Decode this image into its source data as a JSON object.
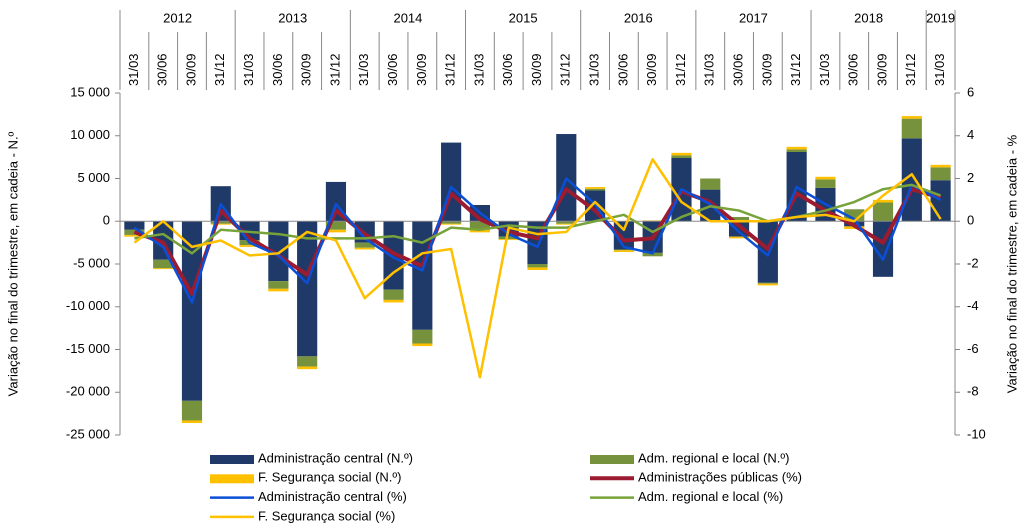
{
  "chart_data": {
    "type": "bar",
    "years": [
      "2012",
      "2013",
      "2014",
      "2015",
      "2016",
      "2017",
      "2018",
      "2019"
    ],
    "categories": [
      "31/03",
      "30/06",
      "30/09",
      "31/12",
      "31/03",
      "30/06",
      "30/09",
      "31/12",
      "31/03",
      "30/06",
      "30/09",
      "31/12",
      "31/03",
      "30/06",
      "30/09",
      "31/12",
      "31/03",
      "30/06",
      "30/09",
      "31/12",
      "31/03",
      "30/06",
      "30/09",
      "31/12",
      "31/03",
      "30/06",
      "30/09",
      "31/12",
      "31/03"
    ],
    "y_label": "Variação no final do trimestre, em cadeia - N.º",
    "y2_label": "Variação no final do trimestre, em cadeia - %",
    "ylim": [
      -25000,
      15000
    ],
    "yticks": [
      {
        "value": 15000,
        "label": "15 000"
      },
      {
        "value": 10000,
        "label": "10 000"
      },
      {
        "value": 5000,
        "label": "5 000"
      },
      0,
      {
        "value": -5000,
        "label": "-5 000"
      },
      {
        "value": -10000,
        "label": "-10 000"
      },
      {
        "value": -15000,
        "label": "-15 000"
      },
      {
        "value": -20000,
        "label": "-20 000"
      },
      {
        "value": -25000,
        "label": "-25 000"
      }
    ],
    "y2lim": [
      -10,
      6
    ],
    "y2ticks": [
      6,
      4,
      2,
      0,
      -2,
      -4,
      -6,
      -8,
      -10
    ],
    "series": [
      {
        "name": "Administração central (N.º)",
        "type": "bar",
        "color": "#1f3a68",
        "values": [
          -1000,
          -4500,
          -21000,
          4100,
          -2200,
          -7000,
          -15800,
          4600,
          -2500,
          -8000,
          -12700,
          9200,
          1900,
          -1800,
          -5000,
          10200,
          3600,
          -3300,
          -3700,
          7400,
          3700,
          -1800,
          -7200,
          8100,
          3900,
          -600,
          -6500,
          9700,
          4800
        ]
      },
      {
        "name": "Adm. regional e local (N.º)",
        "type": "bar",
        "color": "#76923c",
        "values": [
          -600,
          -1000,
          -2300,
          -300,
          -600,
          -900,
          -1200,
          -1000,
          -600,
          -1200,
          -1600,
          -300,
          -1000,
          -300,
          -400,
          -300,
          200,
          -100,
          -400,
          300,
          1300,
          500,
          -100,
          300,
          1000,
          1400,
          2200,
          2300,
          1500
        ]
      },
      {
        "name": "F. Segurança social (N.º)",
        "type": "bar",
        "color": "#ffc000",
        "values": [
          -200,
          -100,
          -300,
          -100,
          -200,
          -300,
          -300,
          -300,
          -200,
          -300,
          -300,
          -100,
          -300,
          -100,
          -300,
          -100,
          200,
          -200,
          100,
          300,
          0,
          -200,
          -200,
          300,
          300,
          -300,
          300,
          300,
          300
        ]
      },
      {
        "name": "Administrações públicas (%)",
        "type": "line",
        "axis": "y2",
        "color": "#9b1b30",
        "width": 4,
        "values": [
          -0.5,
          -1.0,
          -3.4,
          0.5,
          -0.8,
          -1.6,
          -2.5,
          0.5,
          -0.6,
          -1.5,
          -2.1,
          1.3,
          0.1,
          -0.5,
          -0.8,
          1.5,
          0.5,
          -0.9,
          -0.8,
          1.4,
          0.9,
          -0.2,
          -1.3,
          1.3,
          0.5,
          -0.2,
          -1.0,
          1.5,
          1.1
        ]
      },
      {
        "name": "Administração central (%)",
        "type": "line",
        "axis": "y2",
        "color": "#0a4fd6",
        "width": 2.5,
        "values": [
          -0.3,
          -1.2,
          -3.8,
          0.8,
          -1.0,
          -1.6,
          -2.9,
          0.8,
          -0.8,
          -1.7,
          -2.3,
          1.6,
          0.4,
          -0.6,
          -1.2,
          2.0,
          0.8,
          -1.2,
          -1.5,
          1.5,
          0.8,
          -0.5,
          -1.6,
          1.6,
          0.8,
          0.1,
          -1.8,
          1.7,
          1.0
        ]
      },
      {
        "name": "Adm. regional e local (%)",
        "type": "line",
        "axis": "y2",
        "color": "#77a33a",
        "width": 2.5,
        "values": [
          -0.8,
          -0.6,
          -1.5,
          -0.4,
          -0.5,
          -0.6,
          -0.8,
          -0.8,
          -0.8,
          -0.7,
          -1.0,
          -0.3,
          -0.4,
          -0.2,
          -0.3,
          -0.3,
          0.0,
          0.3,
          -0.5,
          0.2,
          0.7,
          0.5,
          0.0,
          0.2,
          0.5,
          0.9,
          1.5,
          1.7,
          1.2
        ]
      },
      {
        "name": "F. Segurança social (%)",
        "type": "line",
        "axis": "y2",
        "color": "#ffc000",
        "width": 2.5,
        "values": [
          -1.0,
          0.0,
          -1.2,
          -0.9,
          -1.6,
          -1.5,
          -0.5,
          -0.9,
          -3.6,
          -2.4,
          -1.5,
          -1.3,
          -7.3,
          -0.3,
          -0.6,
          -0.5,
          0.9,
          -0.4,
          2.9,
          0.9,
          0.0,
          0.0,
          0.0,
          0.2,
          0.3,
          0.0,
          1.2,
          2.2,
          0.1
        ]
      }
    ]
  }
}
